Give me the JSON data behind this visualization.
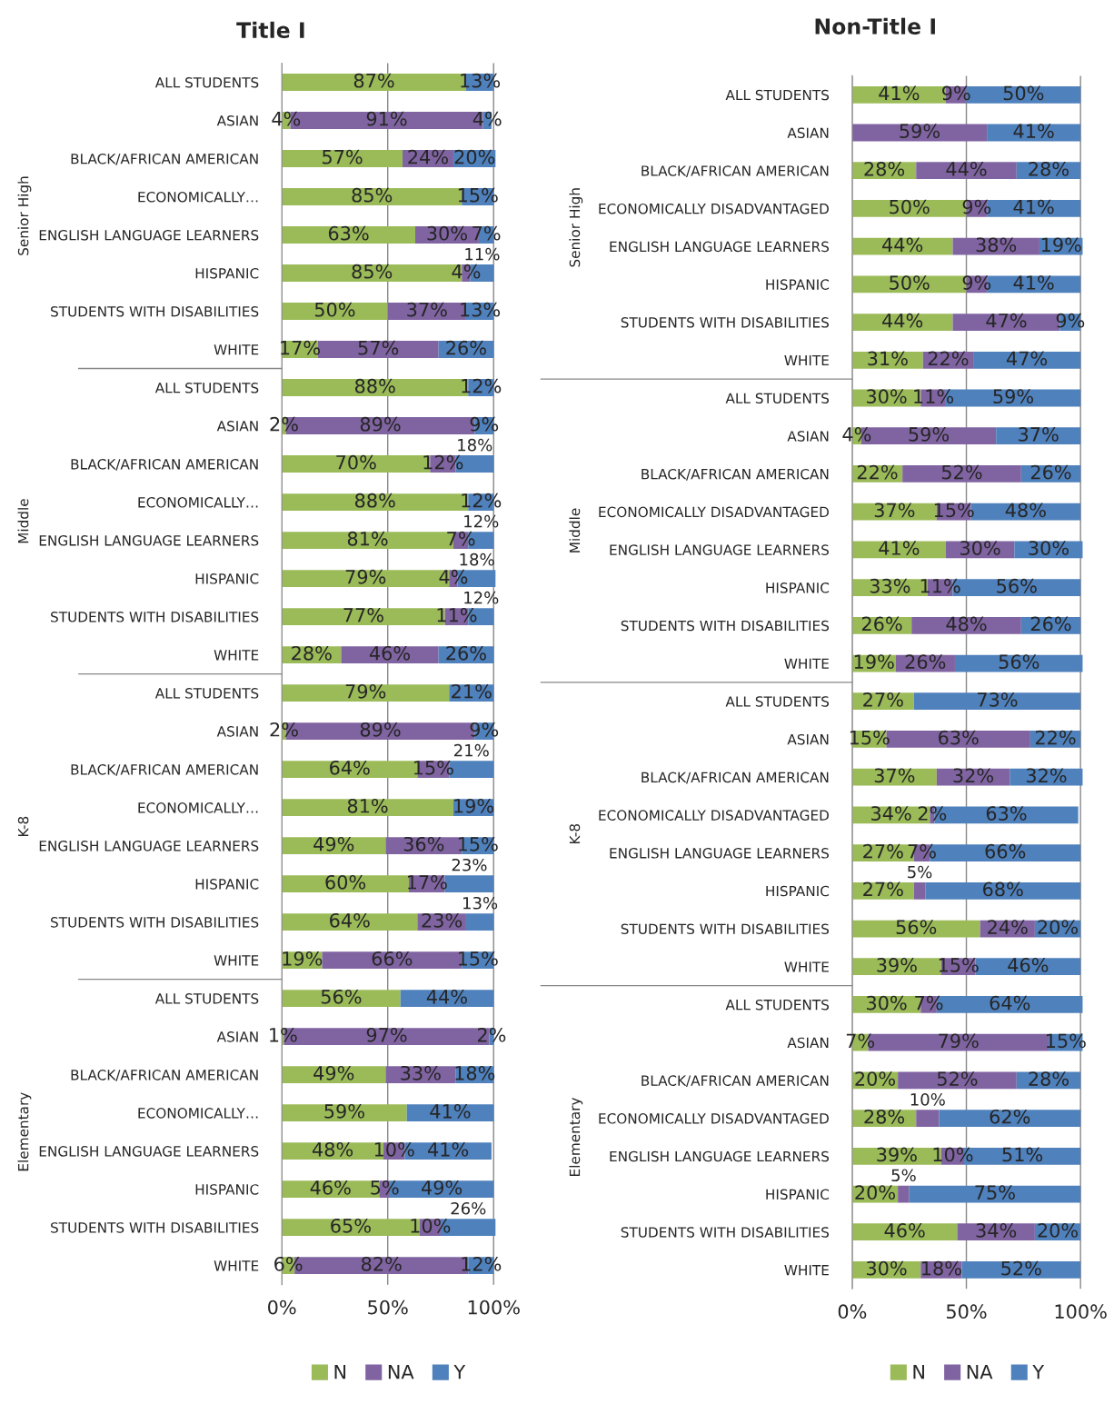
{
  "chart_data": [
    {
      "type": "bar",
      "orientation": "horizontal",
      "stacked": true,
      "title": "Title I",
      "annotations": [
        "Senior High",
        "Middle",
        "K-8",
        "Elementary"
      ],
      "categories": [
        "ALL STUDENTS",
        "ASIAN",
        "BLACK/AFRICAN AMERICAN",
        "ECONOMICALLY…",
        "ENGLISH LANGUAGE LEARNERS",
        "HISPANIC",
        "STUDENTS WITH DISABILITIES",
        "WHITE",
        "ALL STUDENTS",
        "ASIAN",
        "BLACK/AFRICAN AMERICAN",
        "ECONOMICALLY…",
        "ENGLISH LANGUAGE LEARNERS",
        "HISPANIC",
        "STUDENTS WITH DISABILITIES",
        "WHITE",
        "ALL STUDENTS",
        "ASIAN",
        "BLACK/AFRICAN AMERICAN",
        "ECONOMICALLY…",
        "ENGLISH LANGUAGE LEARNERS",
        "HISPANIC",
        "STUDENTS WITH DISABILITIES",
        "WHITE",
        "ALL STUDENTS",
        "ASIAN",
        "BLACK/AFRICAN AMERICAN",
        "ECONOMICALLY…",
        "ENGLISH LANGUAGE LEARNERS",
        "HISPANIC",
        "STUDENTS WITH DISABILITIES",
        "WHITE"
      ],
      "series": [
        {
          "name": "N",
          "color": "#9bbb59",
          "values": [
            87,
            4,
            57,
            85,
            63,
            85,
            50,
            17,
            88,
            2,
            70,
            88,
            81,
            79,
            77,
            28,
            79,
            2,
            64,
            81,
            49,
            60,
            64,
            19,
            56,
            1,
            49,
            59,
            48,
            46,
            65,
            6
          ],
          "value_labels": [
            "87%",
            "4%",
            "57%",
            "85%",
            "63%",
            "85%",
            "50%",
            "17%",
            "88%",
            "2%",
            "70%",
            "88%",
            "81%",
            "79%",
            "77%",
            "28%",
            "79%",
            "2%",
            "64%",
            "81%",
            "49%",
            "60%",
            "64%",
            "19%",
            "56%",
            "1%",
            "49%",
            "59%",
            "48%",
            "46%",
            "65%",
            "6%"
          ]
        },
        {
          "name": "NA",
          "color": "#8064a2",
          "values": [
            0,
            91,
            24,
            0,
            30,
            4,
            37,
            57,
            0,
            89,
            12,
            0,
            7,
            4,
            11,
            46,
            0,
            89,
            15,
            0,
            36,
            17,
            23,
            66,
            0,
            97,
            33,
            0,
            10,
            5,
            10,
            82
          ],
          "value_labels": [
            null,
            "91%",
            "24%",
            null,
            "30%",
            "4%",
            "37%",
            "57%",
            null,
            "89%",
            "12%",
            null,
            "7%",
            "4%",
            "11%",
            "46%",
            null,
            "89%",
            "15%",
            null,
            "36%",
            "17%",
            "23%",
            "66%",
            null,
            "97%",
            "33%",
            null,
            "10%",
            "5%",
            "10%",
            "82%"
          ]
        },
        {
          "name": "Y",
          "color": "#4f81bd",
          "values": [
            13,
            4,
            20,
            15,
            7,
            11,
            13,
            26,
            12,
            9,
            18,
            12,
            12,
            18,
            12,
            26,
            21,
            9,
            21,
            19,
            15,
            23,
            13,
            15,
            44,
            2,
            18,
            41,
            41,
            49,
            26,
            12
          ],
          "value_labels": [
            "13%",
            "4%",
            "20%",
            "15%",
            "7%",
            "11%",
            "13%",
            "26%",
            "12%",
            "9%",
            "18%",
            "12%",
            "12%",
            "18%",
            "12%",
            "26%",
            "21%",
            "9%",
            "21%",
            "19%",
            "15%",
            "23%",
            "13%",
            "15%",
            "44%",
            "2%",
            "18%",
            "41%",
            "41%",
            "49%",
            "26%",
            "12%"
          ]
        }
      ],
      "xlim": [
        0,
        101
      ],
      "xticks": [
        {
          "value": 0,
          "label": "0%"
        },
        {
          "value": 50,
          "label": "50%"
        },
        {
          "value": 100,
          "label": "100%"
        }
      ],
      "grid": "x",
      "legend": "bottom"
    },
    {
      "type": "bar",
      "orientation": "horizontal",
      "stacked": true,
      "title": "Non-Title I",
      "annotations": [
        "Senior High",
        "Middle",
        "K-8",
        "Elementary"
      ],
      "categories": [
        "ALL STUDENTS",
        "ASIAN",
        "BLACK/AFRICAN AMERICAN",
        "ECONOMICALLY DISADVANTAGED",
        "ENGLISH LANGUAGE LEARNERS",
        "HISPANIC",
        "STUDENTS WITH DISABILITIES",
        "WHITE",
        "ALL STUDENTS",
        "ASIAN",
        "BLACK/AFRICAN AMERICAN",
        "ECONOMICALLY DISADVANTAGED",
        "ENGLISH LANGUAGE LEARNERS",
        "HISPANIC",
        "STUDENTS WITH DISABILITIES",
        "WHITE",
        "ALL STUDENTS",
        "ASIAN",
        "BLACK/AFRICAN AMERICAN",
        "ECONOMICALLY DISADVANTAGED",
        "ENGLISH LANGUAGE LEARNERS",
        "HISPANIC",
        "STUDENTS WITH DISABILITIES",
        "WHITE",
        "ALL STUDENTS",
        "ASIAN",
        "BLACK/AFRICAN AMERICAN",
        "ECONOMICALLY DISADVANTAGED",
        "ENGLISH LANGUAGE LEARNERS",
        "HISPANIC",
        "STUDENTS WITH DISABILITIES",
        "WHITE"
      ],
      "series": [
        {
          "name": "N",
          "color": "#9bbb59",
          "values": [
            41,
            0,
            28,
            50,
            44,
            50,
            44,
            31,
            30,
            4,
            22,
            37,
            41,
            33,
            26,
            19,
            27,
            15,
            37,
            34,
            27,
            27,
            56,
            39,
            30,
            7,
            20,
            28,
            39,
            20,
            46,
            30
          ],
          "value_labels": [
            "41%",
            null,
            "28%",
            "50%",
            "44%",
            "50%",
            "44%",
            "31%",
            "30%",
            "4%",
            "22%",
            "37%",
            "41%",
            "33%",
            "26%",
            "19%",
            "27%",
            "15%",
            "37%",
            "34%",
            "27%",
            "27%",
            "56%",
            "39%",
            "30%",
            "7%",
            "20%",
            "28%",
            "39%",
            "20%",
            "46%",
            "30%"
          ]
        },
        {
          "name": "NA",
          "color": "#8064a2",
          "values": [
            9,
            59,
            44,
            9,
            38,
            9,
            47,
            22,
            11,
            59,
            52,
            15,
            30,
            11,
            48,
            26,
            0,
            63,
            32,
            2,
            7,
            5,
            24,
            15,
            7,
            79,
            52,
            10,
            10,
            5,
            34,
            18
          ],
          "value_labels": [
            "9%",
            "59%",
            "44%",
            "9%",
            "38%",
            "9%",
            "47%",
            "22%",
            "11%",
            "59%",
            "52%",
            "15%",
            "30%",
            "11%",
            "48%",
            "26%",
            null,
            "63%",
            "32%",
            "2%",
            "7%",
            "5%",
            "24%",
            "15%",
            "7%",
            "79%",
            "52%",
            "10%",
            "10%",
            "5%",
            "34%",
            "18%"
          ]
        },
        {
          "name": "Y",
          "color": "#4f81bd",
          "values": [
            50,
            41,
            28,
            41,
            19,
            41,
            9,
            47,
            59,
            37,
            26,
            48,
            30,
            56,
            26,
            56,
            73,
            22,
            32,
            63,
            66,
            68,
            20,
            46,
            64,
            15,
            28,
            62,
            51,
            75,
            20,
            52
          ],
          "value_labels": [
            "50%",
            "41%",
            "28%",
            "41%",
            "19%",
            "41%",
            "9%",
            "47%",
            "59%",
            "37%",
            "26%",
            "48%",
            "30%",
            "56%",
            "26%",
            "56%",
            "73%",
            "22%",
            "32%",
            "63%",
            "66%",
            "68%",
            "20%",
            "46%",
            "64%",
            "15%",
            "28%",
            "62%",
            "51%",
            "75%",
            "20%",
            "52%"
          ]
        }
      ],
      "xlim": [
        0,
        101
      ],
      "xticks": [
        {
          "value": 0,
          "label": "0%"
        },
        {
          "value": 50,
          "label": "50%"
        },
        {
          "value": 100,
          "label": "100%"
        }
      ],
      "grid": "x",
      "legend": "bottom"
    }
  ]
}
